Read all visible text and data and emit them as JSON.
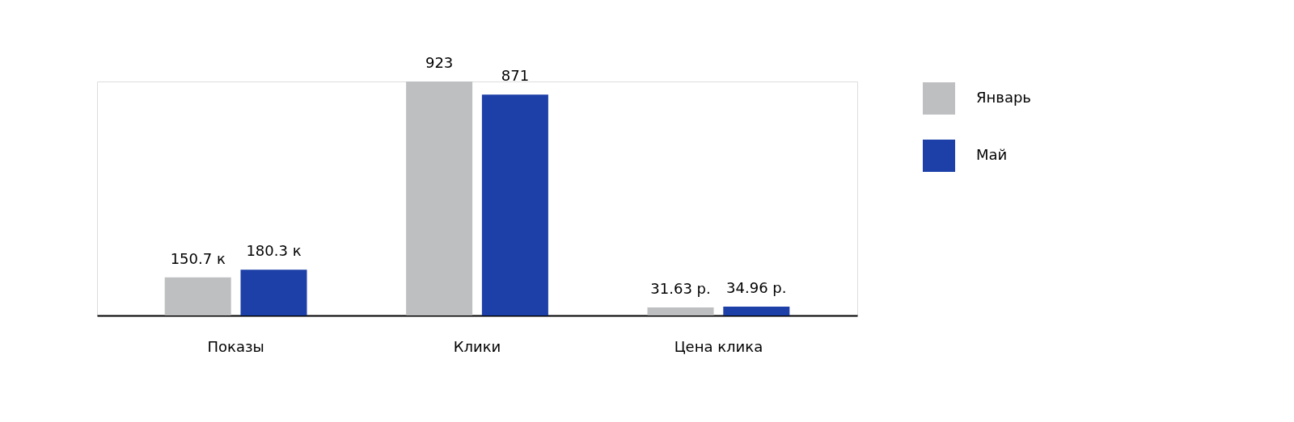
{
  "chart_data": {
    "type": "bar",
    "categories": [
      "Показы",
      "Клики",
      "Цена клика"
    ],
    "tick_labels": "x",
    "legend": "right",
    "series": [
      {
        "name": "Январь",
        "color": "#bebfc1",
        "values": [
          150.7,
          923,
          31.63
        ],
        "value_labels": [
          "150.7 к",
          "923",
          "31.63 р."
        ]
      },
      {
        "name": "Май",
        "color": "#1c3fa8",
        "values": [
          180.3,
          871,
          34.96
        ],
        "value_labels": [
          "180.3 к",
          "871",
          "34.96 р."
        ]
      }
    ]
  }
}
